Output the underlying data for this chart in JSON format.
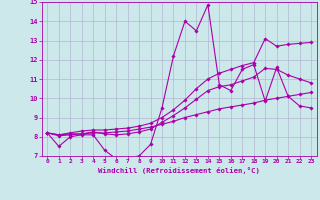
{
  "background_color": "#cde8ea",
  "grid_color": "#b0b8d0",
  "line_color": "#aa00aa",
  "xlabel": "Windchill (Refroidissement éolien,°C)",
  "xlim": [
    -0.5,
    23.5
  ],
  "ylim": [
    7,
    15
  ],
  "xticks": [
    0,
    1,
    2,
    3,
    4,
    5,
    6,
    7,
    8,
    9,
    10,
    11,
    12,
    13,
    14,
    15,
    16,
    17,
    18,
    19,
    20,
    21,
    22,
    23
  ],
  "yticks": [
    7,
    8,
    9,
    10,
    11,
    12,
    13,
    14,
    15
  ],
  "series": [
    [
      8.2,
      7.5,
      8.0,
      8.1,
      8.1,
      7.3,
      6.85,
      6.9,
      7.0,
      7.6,
      9.5,
      12.2,
      14.0,
      13.5,
      14.85,
      10.7,
      10.4,
      11.5,
      11.75,
      9.85,
      11.6,
      10.1,
      9.6,
      9.5
    ],
    [
      8.2,
      8.1,
      8.15,
      8.15,
      8.2,
      8.2,
      8.25,
      8.3,
      8.4,
      8.5,
      8.65,
      8.8,
      9.0,
      9.15,
      9.3,
      9.45,
      9.55,
      9.65,
      9.75,
      9.9,
      10.0,
      10.1,
      10.2,
      10.3
    ],
    [
      8.2,
      8.1,
      8.2,
      8.3,
      8.35,
      8.35,
      8.4,
      8.45,
      8.55,
      8.7,
      9.0,
      9.4,
      9.9,
      10.5,
      11.0,
      11.3,
      11.5,
      11.7,
      11.85,
      13.1,
      12.7,
      12.8,
      12.85,
      12.9
    ],
    [
      8.2,
      8.05,
      8.1,
      8.15,
      8.25,
      8.15,
      8.1,
      8.15,
      8.25,
      8.4,
      8.75,
      9.1,
      9.5,
      9.95,
      10.4,
      10.6,
      10.7,
      10.9,
      11.1,
      11.55,
      11.5,
      11.2,
      11.0,
      10.8
    ]
  ]
}
